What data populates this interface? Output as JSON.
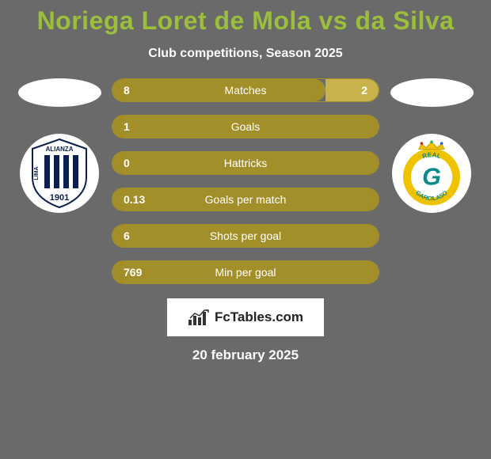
{
  "background_color": "#6a6a6a",
  "title": {
    "text": "Noriega Loret de Mola vs da Silva",
    "color": "#9bbf3b",
    "fontsize": 32
  },
  "subtitle": {
    "text": "Club competitions, Season 2025",
    "color": "#ffffff",
    "fontsize": 16
  },
  "oval_color": "#ffffff",
  "club_left": {
    "bg": "#ffffff",
    "stripe_color": "#0b1f4d",
    "text_color": "#0b1f4d",
    "top_text": "ALIANZA",
    "bottom_text": "1901",
    "side_text": "LIMA"
  },
  "club_right": {
    "ring_color": "#f0c300",
    "inner_bg": "#ffffff",
    "text_color": "#0a8a8a",
    "crown_color": "#f0c300",
    "letter": "G",
    "top_text": "REAL",
    "bottom_text": "GARCILASO"
  },
  "bars": {
    "outline_color": "#a38f2a",
    "left_fill": "#a38f2a",
    "right_fill": "#c7b24c",
    "text_color": "#ffffff",
    "label_color": "#ffffff",
    "items": [
      {
        "label": "Matches",
        "left": "8",
        "right": "2",
        "left_pct": 80,
        "right_pct": 20,
        "show_right": true
      },
      {
        "label": "Goals",
        "left": "1",
        "right": "",
        "left_pct": 100,
        "right_pct": 0,
        "show_right": false
      },
      {
        "label": "Hattricks",
        "left": "0",
        "right": "",
        "left_pct": 100,
        "right_pct": 0,
        "show_right": false
      },
      {
        "label": "Goals per match",
        "left": "0.13",
        "right": "",
        "left_pct": 100,
        "right_pct": 0,
        "show_right": false
      },
      {
        "label": "Shots per goal",
        "left": "6",
        "right": "",
        "left_pct": 100,
        "right_pct": 0,
        "show_right": false
      },
      {
        "label": "Min per goal",
        "left": "769",
        "right": "",
        "left_pct": 100,
        "right_pct": 0,
        "show_right": false
      }
    ]
  },
  "watermark": {
    "text": "FcTables.com",
    "bg": "#ffffff",
    "text_color": "#222222",
    "chart_color": "#333333"
  },
  "date": {
    "text": "20 february 2025",
    "color": "#ffffff"
  }
}
